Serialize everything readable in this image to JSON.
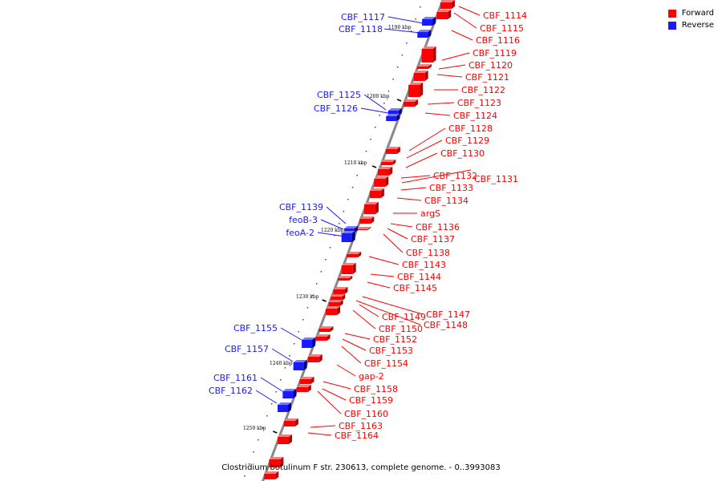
{
  "colors": {
    "forward": "#ff0000",
    "reverse": "#1a1aff",
    "axis": "#888888"
  },
  "legend": {
    "forward_label": "Forward",
    "reverse_label": "Reverse"
  },
  "caption": "Clostridium botulinum F str. 230613, complete genome. - 0..3993083",
  "kbp_ticks": [
    "1190 kbp",
    "1200 kbp",
    "1210 kbp",
    "1220 kbp",
    "1230 kbp",
    "1240 kbp",
    "1250 kbp"
  ],
  "forward_genes": [
    "CBF_1114",
    "CBF_1115",
    "CBF_1116",
    "CBF_1119",
    "CBF_1120",
    "CBF_1121",
    "CBF_1122",
    "CBF_1123",
    "CBF_1124",
    "CBF_1128",
    "CBF_1129",
    "CBF_1130",
    "CBF_1132",
    "CBF_1131",
    "CBF_1133",
    "CBF_1134",
    "argS",
    "CBF_1136",
    "CBF_1137",
    "CBF_1138",
    "CBF_1143",
    "CBF_1144",
    "CBF_1145",
    "CBF_1147",
    "CBF_1149",
    "CBF_1148",
    "CBF_1150",
    "CBF_1152",
    "CBF_1153",
    "CBF_1154",
    "gap-2",
    "CBF_1158",
    "CBF_1159",
    "CBF_1160",
    "CBF_1163",
    "CBF_1164"
  ],
  "reverse_genes": [
    "CBF_1117",
    "CBF_1118",
    "CBF_1125",
    "CBF_1126",
    "CBF_1139",
    "feoB-3",
    "feoA-2",
    "CBF_1155",
    "CBF_1157",
    "CBF_1161",
    "CBF_1162"
  ]
}
